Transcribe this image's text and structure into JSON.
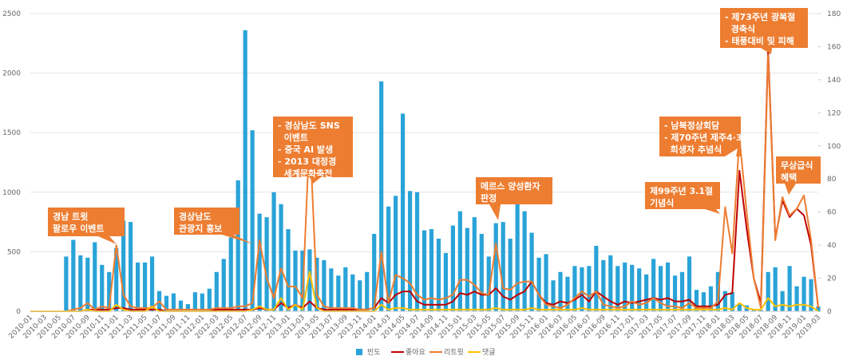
{
  "chart_data": {
    "type": "bar_line",
    "categories": [
      "2010-01",
      null,
      "2010-03",
      null,
      "2010-05",
      null,
      "2010-07",
      null,
      "2010-09",
      null,
      "2010-11",
      null,
      "2011-01",
      null,
      "2011-03",
      null,
      "2011-05",
      null,
      "2011-07",
      null,
      "2011-09",
      null,
      "2011-11",
      null,
      "2012-01",
      null,
      "2012-03",
      null,
      "2012-05",
      null,
      "2012-07",
      null,
      "2012-09",
      null,
      "2012-11",
      null,
      "2013-01",
      null,
      "2013-03",
      null,
      "2013-05",
      null,
      "2013-07",
      null,
      "2013-09",
      null,
      "2013-11",
      null,
      "2014-01",
      null,
      "2014-03",
      null,
      "2014-05",
      null,
      "2014-07",
      null,
      "2014-09",
      null,
      "2014-11",
      null,
      "2015-01",
      null,
      "2015-03",
      null,
      "2015-05",
      null,
      "2015-07",
      null,
      "2015-09",
      null,
      "2015-11",
      null,
      "2016-01",
      null,
      "2016-03",
      null,
      "2016-05",
      null,
      "2016-07",
      null,
      "2016-09",
      null,
      "2016-11",
      null,
      "2017-01",
      null,
      "2017-03",
      null,
      "2017-05",
      null,
      "2017-07",
      null,
      "2017-09",
      null,
      "2017-11",
      null,
      "2018-01",
      null,
      "2018-03",
      null,
      "2018-05",
      null,
      "2018-07",
      null,
      "2018-09",
      null,
      "2018-11",
      null,
      "2019-01",
      null,
      "2019-03"
    ],
    "series": [
      {
        "name": "빈도",
        "color": "#29a3d8",
        "kind": "bar",
        "values": [
          0,
          0,
          0,
          0,
          0,
          460,
          600,
          470,
          450,
          580,
          390,
          330,
          530,
          760,
          750,
          410,
          410,
          460,
          170,
          130,
          150,
          90,
          60,
          160,
          150,
          190,
          330,
          440,
          620,
          1100,
          2360,
          1520,
          820,
          790,
          1000,
          900,
          690,
          510,
          510,
          520,
          450,
          430,
          360,
          300,
          370,
          310,
          260,
          330,
          650,
          1930,
          880,
          970,
          1660,
          1010,
          1000,
          680,
          690,
          610,
          490,
          720,
          840,
          700,
          790,
          650,
          460,
          740,
          750,
          610,
          900,
          840,
          660,
          450,
          480,
          260,
          330,
          290,
          380,
          370,
          380,
          550,
          430,
          470,
          380,
          410,
          390,
          360,
          310,
          440,
          380,
          410,
          300,
          330,
          460,
          180,
          160,
          210,
          330,
          170,
          160,
          60,
          50,
          20,
          10,
          330,
          370,
          170,
          380,
          210,
          290,
          270,
          40
        ]
      },
      {
        "name": "좋아요",
        "color": "#c00000",
        "kind": "line",
        "axis": "y2",
        "values": [
          0,
          0,
          0,
          0,
          0,
          0,
          0,
          0,
          1,
          1,
          1,
          1,
          2,
          2,
          1,
          1,
          1,
          1,
          1,
          0,
          0,
          0,
          0,
          0,
          0,
          0,
          1,
          1,
          1,
          1,
          1,
          1,
          2,
          1,
          1,
          5,
          2,
          4,
          2,
          6,
          2,
          1,
          1,
          1,
          1,
          1,
          1,
          1,
          2,
          8,
          5,
          10,
          12,
          12,
          6,
          4,
          4,
          4,
          4,
          6,
          11,
          10,
          12,
          10,
          10,
          14,
          9,
          7,
          10,
          12,
          18,
          10,
          5,
          4,
          6,
          5,
          7,
          10,
          6,
          12,
          9,
          6,
          4,
          6,
          5,
          6,
          7,
          8,
          7,
          8,
          6,
          6,
          7,
          3,
          3,
          3,
          4,
          10,
          11,
          85,
          50,
          20,
          5,
          158,
          44,
          67,
          57,
          62,
          58,
          40,
          2
        ]
      },
      {
        "name": "리트윗",
        "color": "#ed7d31",
        "kind": "line",
        "axis": "y2",
        "values": [
          0,
          0,
          0,
          0,
          0,
          0,
          1,
          2,
          5,
          1,
          3,
          2,
          40,
          10,
          3,
          2,
          2,
          2,
          6,
          1,
          1,
          1,
          1,
          1,
          1,
          1,
          2,
          2,
          2,
          3,
          3,
          5,
          43,
          20,
          8,
          26,
          15,
          15,
          8,
          109,
          10,
          3,
          2,
          2,
          2,
          2,
          1,
          1,
          2,
          36,
          5,
          22,
          20,
          17,
          10,
          7,
          8,
          7,
          8,
          10,
          19,
          19,
          16,
          11,
          10,
          41,
          14,
          13,
          17,
          18,
          18,
          10,
          4,
          3,
          2,
          4,
          8,
          12,
          9,
          12,
          4,
          3,
          2,
          3,
          6,
          4,
          5,
          8,
          5,
          3,
          3,
          2,
          5,
          2,
          2,
          2,
          6,
          63,
          35,
          105,
          60,
          20,
          2,
          155,
          43,
          69,
          58,
          62,
          70,
          43,
          2
        ]
      },
      {
        "name": "댓글",
        "color": "#ffc000",
        "kind": "line",
        "axis": "y2",
        "values": [
          0,
          0,
          0,
          0,
          0,
          0,
          0,
          0,
          1,
          0,
          0,
          0,
          4,
          1,
          0,
          0,
          0,
          3,
          0,
          0,
          0,
          0,
          0,
          0,
          0,
          0,
          0,
          0,
          0,
          0,
          0,
          1,
          3,
          1,
          1,
          8,
          1,
          4,
          1,
          24,
          2,
          0,
          0,
          0,
          0,
          0,
          0,
          0,
          0,
          4,
          1,
          2,
          2,
          1,
          1,
          1,
          1,
          1,
          1,
          1,
          1,
          1,
          1,
          1,
          1,
          2,
          1,
          1,
          1,
          1,
          2,
          1,
          1,
          1,
          1,
          1,
          1,
          2,
          1,
          1,
          1,
          1,
          1,
          1,
          1,
          1,
          1,
          1,
          1,
          1,
          1,
          1,
          1,
          1,
          1,
          1,
          1,
          2,
          1,
          5,
          2,
          1,
          1,
          8,
          3,
          4,
          3,
          4,
          4,
          3,
          0
        ]
      }
    ],
    "ylim": [
      0,
      2500
    ],
    "yticks": [
      0,
      500,
      1000,
      1500,
      2000,
      2500
    ],
    "y2lim": [
      0,
      180
    ],
    "y2ticks": [
      0,
      20,
      40,
      60,
      80,
      100,
      120,
      140,
      160,
      180
    ],
    "grid": true,
    "legend": "bottom",
    "annotations": [
      {
        "lines": [
          "경남 트윗",
          "팔로우 이벤트"
        ]
      },
      {
        "lines": [
          "경상남도",
          "관광지 홍보"
        ]
      },
      {
        "lines": [
          "- 경상남도 SNS",
          "  이벤트",
          "- 중국 AI 발생",
          "- 2013 대정경",
          "  세계문화축전"
        ]
      },
      {
        "lines": [
          "메르스 양성환자",
          "판정"
        ]
      },
      {
        "lines": [
          "제99주년 3.1절",
          "기념식"
        ]
      },
      {
        "lines": [
          "- 남북정상회담",
          "- 제70주년 제주4·3",
          "  희생자 추념식"
        ]
      },
      {
        "lines": [
          "- 제73주년 광복절",
          "  경축식",
          "- 태풍대비 및 피해"
        ]
      },
      {
        "lines": [
          "무상급식",
          "혜택"
        ]
      }
    ]
  }
}
